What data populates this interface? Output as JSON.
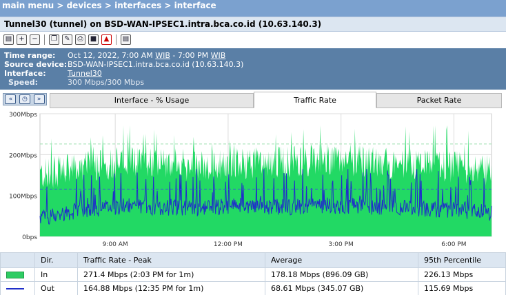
{
  "breadcrumb": {
    "main_menu": "main menu",
    "sep": " > ",
    "devices": "devices",
    "interfaces": "interfaces",
    "interface": "interface"
  },
  "title": "Tunnel30 (tunnel) on BSD-WAN-IPSEC1.intra.bca.co.id (10.63.140.3)",
  "toolbar": {
    "icons": [
      "print-preview-icon",
      "zoom-in-icon",
      "zoom-out-icon",
      "copy-icon",
      "report-icon",
      "print-icon",
      "save-icon",
      "pdf-icon",
      "window-icon"
    ]
  },
  "info": {
    "time_range_label": "Time range:",
    "time_range_prefix": "Oct 12, 2022, 7:00 AM ",
    "time_range_tz1": "WIB",
    "time_range_mid": " - 7:00 PM ",
    "time_range_tz2": "WIB",
    "source_label": "Source device:",
    "source_value": "BSD-WAN-IPSEC1.intra.bca.co.id (10.63.140.3)",
    "interface_label": "Interface:",
    "interface_value": "Tunnel30",
    "speed_label": "Speed:",
    "speed_value": "300 Mbps/300 Mbps"
  },
  "tabs": [
    {
      "label": "Interface - % Usage",
      "active": false
    },
    {
      "label": "Traffic Rate",
      "active": true
    },
    {
      "label": "Packet Rate",
      "active": false
    }
  ],
  "colors": {
    "in_fill": "#22d964",
    "out_line": "#1f2fc9",
    "grid": "#dcdcdc",
    "percentile_in": "#9fdfb0",
    "percentile_out": "#3b5bd6"
  },
  "chart_data": {
    "type": "area",
    "y_tick_labels": [
      "0bps",
      "100Mbps",
      "200Mbps",
      "300Mbps"
    ],
    "y_ticks": [
      0,
      100,
      200,
      300
    ],
    "ylim": [
      0,
      300
    ],
    "x_tick_labels": [
      "9:00 AM",
      "12:00 PM",
      "3:00 PM",
      "6:00 PM"
    ],
    "x_ticks_hours": [
      9,
      12,
      15,
      18
    ],
    "xlim_hours": [
      7,
      19
    ],
    "grid": true,
    "series": [
      {
        "name": "In",
        "style": "filled area",
        "peak": 271.4,
        "average": 178.18,
        "percentile95": 226.13,
        "profile": [
          [
            7.0,
            150
          ],
          [
            7.5,
            160
          ],
          [
            8.0,
            165
          ],
          [
            8.5,
            175
          ],
          [
            9.0,
            180
          ],
          [
            9.5,
            182
          ],
          [
            10.0,
            185
          ],
          [
            10.5,
            178
          ],
          [
            11.0,
            175
          ],
          [
            11.5,
            172
          ],
          [
            12.0,
            175
          ],
          [
            12.5,
            180
          ],
          [
            13.0,
            178
          ],
          [
            13.5,
            182
          ],
          [
            14.0,
            185
          ],
          [
            14.5,
            190
          ],
          [
            15.0,
            188
          ],
          [
            15.5,
            185
          ],
          [
            16.0,
            182
          ],
          [
            16.5,
            178
          ],
          [
            17.0,
            175
          ],
          [
            17.5,
            172
          ],
          [
            18.0,
            170
          ],
          [
            18.5,
            168
          ],
          [
            19.0,
            160
          ]
        ]
      },
      {
        "name": "Out",
        "style": "line",
        "peak": 164.88,
        "average": 68.61,
        "percentile95": 115.69,
        "profile": [
          [
            7.0,
            45
          ],
          [
            7.5,
            55
          ],
          [
            8.0,
            62
          ],
          [
            8.5,
            68
          ],
          [
            9.0,
            72
          ],
          [
            9.5,
            74
          ],
          [
            10.0,
            72
          ],
          [
            10.5,
            70
          ],
          [
            11.0,
            70
          ],
          [
            11.5,
            72
          ],
          [
            12.0,
            75
          ],
          [
            12.5,
            76
          ],
          [
            13.0,
            74
          ],
          [
            13.5,
            72
          ],
          [
            14.0,
            74
          ],
          [
            14.5,
            76
          ],
          [
            15.0,
            75
          ],
          [
            15.5,
            74
          ],
          [
            16.0,
            72
          ],
          [
            16.5,
            70
          ],
          [
            17.0,
            68
          ],
          [
            17.5,
            66
          ],
          [
            18.0,
            64
          ],
          [
            18.5,
            62
          ],
          [
            19.0,
            58
          ]
        ]
      }
    ]
  },
  "table": {
    "headers": [
      "",
      "Dir.",
      "Traffic Rate - Peak",
      "Average",
      "95th Percentile"
    ],
    "rows": [
      {
        "dir": "In",
        "peak": "271.4 Mbps (2:03 PM for 1m)",
        "average": "178.18 Mbps (896.09 GB)",
        "p95": "226.13 Mbps"
      },
      {
        "dir": "Out",
        "peak": "164.88 Mbps (12:35 PM for 1m)",
        "average": "68.61 Mbps (345.07 GB)",
        "p95": "115.69 Mbps"
      }
    ]
  }
}
